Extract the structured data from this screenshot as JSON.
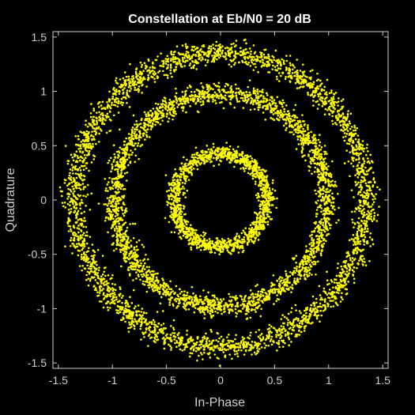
{
  "chart_data": {
    "type": "scatter",
    "title": "Constellation at Eb/N0 = 20 dB",
    "xlabel": "In-Phase",
    "ylabel": "Quadrature",
    "xlim": [
      -1.55,
      1.55
    ],
    "ylim": [
      -1.55,
      1.55
    ],
    "xticks": [
      -1.5,
      -1,
      -0.5,
      0,
      0.5,
      1,
      1.5
    ],
    "yticks": [
      -1.5,
      -1,
      -0.5,
      0,
      0.5,
      1,
      1.5
    ],
    "xtick_labels": [
      "-1.5",
      "-1",
      "-0.5",
      "0",
      "0.5",
      "1",
      "1.5"
    ],
    "ytick_labels": [
      "-1.5",
      "-1",
      "-0.5",
      "0",
      "0.5",
      "1",
      "1.5"
    ],
    "grid": false,
    "background_color": "#000000",
    "axes_color": "#cfcfcf",
    "marker_color": "#ffff00",
    "series": [
      {
        "ring_radius": 0.43,
        "noise_std": 0.035,
        "num_points": 1400
      },
      {
        "ring_radius": 0.98,
        "noise_std": 0.045,
        "num_points": 2600
      },
      {
        "ring_radius": 1.35,
        "noise_std": 0.05,
        "num_points": 3000
      }
    ]
  }
}
